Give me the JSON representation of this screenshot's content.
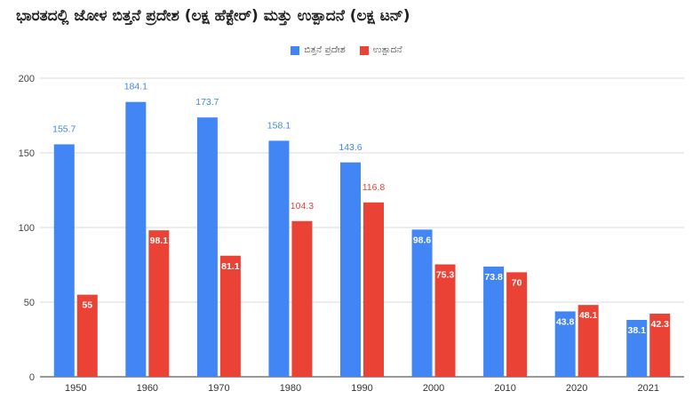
{
  "chart_data": {
    "type": "bar",
    "title": "ಭಾರತದಲ್ಲಿ ಜೋಳ ಬಿತ್ತನೆ ಪ್ರದೇಶ (ಲಕ್ಷ ಹೆಕ್ಟೇರ್) ಮತ್ತು ಉತ್ಪಾದನೆ (ಲಕ್ಷ ಟನ್)",
    "categories": [
      "1950",
      "1960",
      "1970",
      "1980",
      "1990",
      "2000",
      "2010",
      "2020",
      "2021"
    ],
    "series": [
      {
        "name": "ಬಿತ್ತನೆ ಪ್ರದೇಶ",
        "color": "#4285F4",
        "values": [
          155.7,
          184.1,
          173.7,
          158.1,
          143.6,
          98.6,
          73.8,
          43.8,
          38.1
        ],
        "labels": [
          "155.7",
          "184.1",
          "173.7",
          "158.1",
          "143.6",
          "98.6",
          "73.8",
          "43.8",
          "38.1"
        ]
      },
      {
        "name": "ಉತ್ಪಾದನೆ",
        "color": "#EA4335",
        "values": [
          55,
          98.1,
          81.1,
          104.3,
          116.8,
          75.3,
          70,
          48.1,
          42.3
        ],
        "labels": [
          "55",
          "98.1",
          "81.1",
          "104.3",
          "116.8",
          "75.3",
          "70",
          "48.1",
          "42.3"
        ]
      }
    ],
    "ylim": [
      0,
      200
    ],
    "yticks": [
      0,
      50,
      100,
      150,
      200
    ],
    "ytick_labels": [
      "0",
      "50",
      "100",
      "150",
      "200"
    ],
    "grid": true,
    "legend_position": "top-center",
    "xlabel": "",
    "ylabel": ""
  }
}
